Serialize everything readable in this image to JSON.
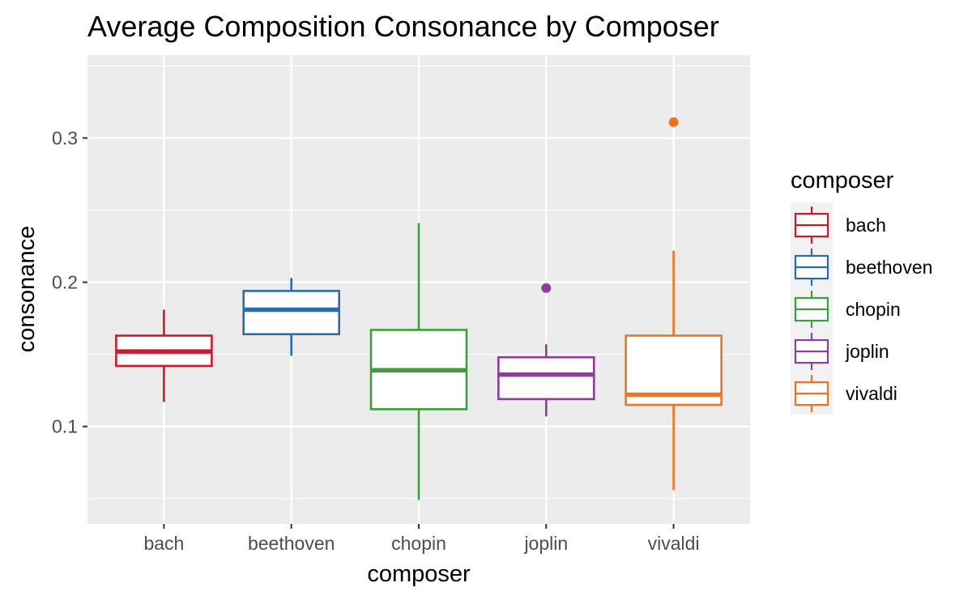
{
  "chart_data": {
    "type": "boxplot",
    "title": "Average Composition Consonance by Composer",
    "xlabel": "composer",
    "ylabel": "consonance",
    "ylim": [
      0.0325,
      0.3575
    ],
    "yticks": [
      0.1,
      0.2,
      0.3
    ],
    "ytick_labels": [
      "0.1",
      "0.2",
      "0.3"
    ],
    "grid": true,
    "legend": {
      "title": "composer",
      "placement": "right"
    },
    "categories": [
      "bach",
      "beethoven",
      "chopin",
      "joplin",
      "vivaldi"
    ],
    "series": [
      {
        "name": "bach",
        "color": "#CB1B2A",
        "whisker_low": 0.117,
        "q1": 0.142,
        "median": 0.152,
        "q3": 0.163,
        "whisker_high": 0.181,
        "outliers": []
      },
      {
        "name": "beethoven",
        "color": "#2E6AAE",
        "whisker_low": 0.149,
        "q1": 0.164,
        "median": 0.181,
        "q3": 0.194,
        "whisker_high": 0.203,
        "outliers": []
      },
      {
        "name": "chopin",
        "color": "#3E9E3C",
        "whisker_low": 0.049,
        "q1": 0.112,
        "median": 0.139,
        "q3": 0.167,
        "whisker_high": 0.241,
        "outliers": []
      },
      {
        "name": "joplin",
        "color": "#8B3F98",
        "whisker_low": 0.107,
        "q1": 0.119,
        "median": 0.136,
        "q3": 0.148,
        "whisker_high": 0.157,
        "outliers": [
          0.196
        ]
      },
      {
        "name": "vivaldi",
        "color": "#EF7322",
        "whisker_low": 0.056,
        "q1": 0.115,
        "median": 0.122,
        "q3": 0.163,
        "whisker_high": 0.222,
        "outliers": [
          0.311
        ]
      }
    ]
  }
}
